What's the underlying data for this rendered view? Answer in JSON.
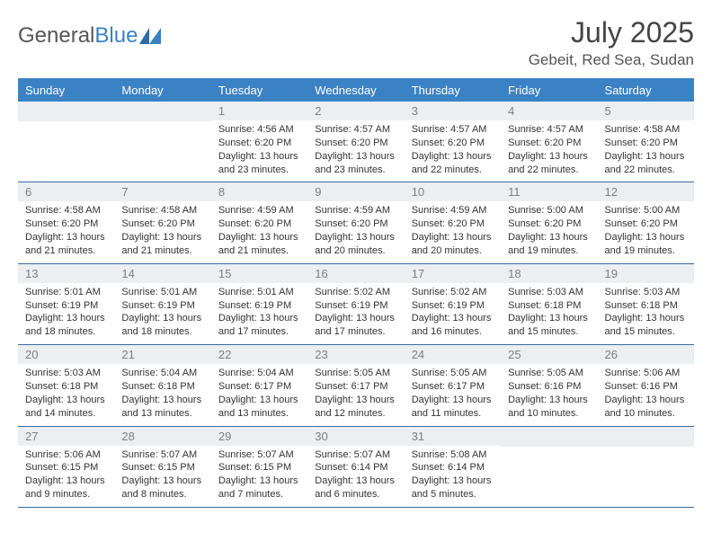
{
  "brand": {
    "part1": "General",
    "part2": "Blue"
  },
  "title": "July 2025",
  "location": "Gebeit, Red Sea, Sudan",
  "colors": {
    "header_bg": "#3b82c4",
    "daynum_bg": "#eceff1",
    "daynum_text": "#7a7f85",
    "border": "#3b6a9a",
    "text": "#333333",
    "title_text": "#444444"
  },
  "typography": {
    "title_fontsize": 32,
    "location_fontsize": 17,
    "dow_fontsize": 13,
    "daynum_fontsize": 13,
    "body_fontsize": 11
  },
  "dow": [
    "Sunday",
    "Monday",
    "Tuesday",
    "Wednesday",
    "Thursday",
    "Friday",
    "Saturday"
  ],
  "weeks": [
    [
      null,
      null,
      {
        "n": "1",
        "sunrise": "Sunrise: 4:56 AM",
        "sunset": "Sunset: 6:20 PM",
        "daylight": "Daylight: 13 hours and 23 minutes."
      },
      {
        "n": "2",
        "sunrise": "Sunrise: 4:57 AM",
        "sunset": "Sunset: 6:20 PM",
        "daylight": "Daylight: 13 hours and 23 minutes."
      },
      {
        "n": "3",
        "sunrise": "Sunrise: 4:57 AM",
        "sunset": "Sunset: 6:20 PM",
        "daylight": "Daylight: 13 hours and 22 minutes."
      },
      {
        "n": "4",
        "sunrise": "Sunrise: 4:57 AM",
        "sunset": "Sunset: 6:20 PM",
        "daylight": "Daylight: 13 hours and 22 minutes."
      },
      {
        "n": "5",
        "sunrise": "Sunrise: 4:58 AM",
        "sunset": "Sunset: 6:20 PM",
        "daylight": "Daylight: 13 hours and 22 minutes."
      }
    ],
    [
      {
        "n": "6",
        "sunrise": "Sunrise: 4:58 AM",
        "sunset": "Sunset: 6:20 PM",
        "daylight": "Daylight: 13 hours and 21 minutes."
      },
      {
        "n": "7",
        "sunrise": "Sunrise: 4:58 AM",
        "sunset": "Sunset: 6:20 PM",
        "daylight": "Daylight: 13 hours and 21 minutes."
      },
      {
        "n": "8",
        "sunrise": "Sunrise: 4:59 AM",
        "sunset": "Sunset: 6:20 PM",
        "daylight": "Daylight: 13 hours and 21 minutes."
      },
      {
        "n": "9",
        "sunrise": "Sunrise: 4:59 AM",
        "sunset": "Sunset: 6:20 PM",
        "daylight": "Daylight: 13 hours and 20 minutes."
      },
      {
        "n": "10",
        "sunrise": "Sunrise: 4:59 AM",
        "sunset": "Sunset: 6:20 PM",
        "daylight": "Daylight: 13 hours and 20 minutes."
      },
      {
        "n": "11",
        "sunrise": "Sunrise: 5:00 AM",
        "sunset": "Sunset: 6:20 PM",
        "daylight": "Daylight: 13 hours and 19 minutes."
      },
      {
        "n": "12",
        "sunrise": "Sunrise: 5:00 AM",
        "sunset": "Sunset: 6:20 PM",
        "daylight": "Daylight: 13 hours and 19 minutes."
      }
    ],
    [
      {
        "n": "13",
        "sunrise": "Sunrise: 5:01 AM",
        "sunset": "Sunset: 6:19 PM",
        "daylight": "Daylight: 13 hours and 18 minutes."
      },
      {
        "n": "14",
        "sunrise": "Sunrise: 5:01 AM",
        "sunset": "Sunset: 6:19 PM",
        "daylight": "Daylight: 13 hours and 18 minutes."
      },
      {
        "n": "15",
        "sunrise": "Sunrise: 5:01 AM",
        "sunset": "Sunset: 6:19 PM",
        "daylight": "Daylight: 13 hours and 17 minutes."
      },
      {
        "n": "16",
        "sunrise": "Sunrise: 5:02 AM",
        "sunset": "Sunset: 6:19 PM",
        "daylight": "Daylight: 13 hours and 17 minutes."
      },
      {
        "n": "17",
        "sunrise": "Sunrise: 5:02 AM",
        "sunset": "Sunset: 6:19 PM",
        "daylight": "Daylight: 13 hours and 16 minutes."
      },
      {
        "n": "18",
        "sunrise": "Sunrise: 5:03 AM",
        "sunset": "Sunset: 6:18 PM",
        "daylight": "Daylight: 13 hours and 15 minutes."
      },
      {
        "n": "19",
        "sunrise": "Sunrise: 5:03 AM",
        "sunset": "Sunset: 6:18 PM",
        "daylight": "Daylight: 13 hours and 15 minutes."
      }
    ],
    [
      {
        "n": "20",
        "sunrise": "Sunrise: 5:03 AM",
        "sunset": "Sunset: 6:18 PM",
        "daylight": "Daylight: 13 hours and 14 minutes."
      },
      {
        "n": "21",
        "sunrise": "Sunrise: 5:04 AM",
        "sunset": "Sunset: 6:18 PM",
        "daylight": "Daylight: 13 hours and 13 minutes."
      },
      {
        "n": "22",
        "sunrise": "Sunrise: 5:04 AM",
        "sunset": "Sunset: 6:17 PM",
        "daylight": "Daylight: 13 hours and 13 minutes."
      },
      {
        "n": "23",
        "sunrise": "Sunrise: 5:05 AM",
        "sunset": "Sunset: 6:17 PM",
        "daylight": "Daylight: 13 hours and 12 minutes."
      },
      {
        "n": "24",
        "sunrise": "Sunrise: 5:05 AM",
        "sunset": "Sunset: 6:17 PM",
        "daylight": "Daylight: 13 hours and 11 minutes."
      },
      {
        "n": "25",
        "sunrise": "Sunrise: 5:05 AM",
        "sunset": "Sunset: 6:16 PM",
        "daylight": "Daylight: 13 hours and 10 minutes."
      },
      {
        "n": "26",
        "sunrise": "Sunrise: 5:06 AM",
        "sunset": "Sunset: 6:16 PM",
        "daylight": "Daylight: 13 hours and 10 minutes."
      }
    ],
    [
      {
        "n": "27",
        "sunrise": "Sunrise: 5:06 AM",
        "sunset": "Sunset: 6:15 PM",
        "daylight": "Daylight: 13 hours and 9 minutes."
      },
      {
        "n": "28",
        "sunrise": "Sunrise: 5:07 AM",
        "sunset": "Sunset: 6:15 PM",
        "daylight": "Daylight: 13 hours and 8 minutes."
      },
      {
        "n": "29",
        "sunrise": "Sunrise: 5:07 AM",
        "sunset": "Sunset: 6:15 PM",
        "daylight": "Daylight: 13 hours and 7 minutes."
      },
      {
        "n": "30",
        "sunrise": "Sunrise: 5:07 AM",
        "sunset": "Sunset: 6:14 PM",
        "daylight": "Daylight: 13 hours and 6 minutes."
      },
      {
        "n": "31",
        "sunrise": "Sunrise: 5:08 AM",
        "sunset": "Sunset: 6:14 PM",
        "daylight": "Daylight: 13 hours and 5 minutes."
      },
      null,
      null
    ]
  ]
}
